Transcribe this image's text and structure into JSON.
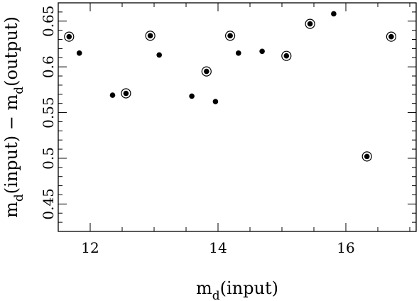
{
  "chart_data": {
    "type": "scatter",
    "title": "",
    "xlabel_base": "m",
    "xlabel_sub": "d",
    "xlabel_rest": "(input)",
    "ylabel_parts": [
      "m",
      "d",
      "(input) − m",
      "d",
      "(output)"
    ],
    "xlim": [
      11.5,
      17.1
    ],
    "ylim": [
      0.42,
      0.67
    ],
    "xticks": [
      12,
      14,
      16
    ],
    "xtick_labels": [
      "12",
      "14",
      "16"
    ],
    "yticks": [
      0.45,
      0.5,
      0.55,
      0.6,
      0.65
    ],
    "ytick_labels": [
      "0.45",
      "0.5",
      "0.55",
      "0.6",
      "0.65"
    ],
    "grid": false,
    "series": [
      {
        "marker": "dot",
        "points": [
          {
            "x": 11.83,
            "y": 0.615
          },
          {
            "x": 12.35,
            "y": 0.569
          },
          {
            "x": 13.08,
            "y": 0.613
          },
          {
            "x": 13.59,
            "y": 0.568
          },
          {
            "x": 13.96,
            "y": 0.562
          },
          {
            "x": 14.32,
            "y": 0.615
          },
          {
            "x": 14.69,
            "y": 0.617
          },
          {
            "x": 15.81,
            "y": 0.658
          }
        ]
      },
      {
        "marker": "circled-dot",
        "points": [
          {
            "x": 11.67,
            "y": 0.633
          },
          {
            "x": 12.56,
            "y": 0.571
          },
          {
            "x": 12.94,
            "y": 0.634
          },
          {
            "x": 13.82,
            "y": 0.595
          },
          {
            "x": 14.19,
            "y": 0.634
          },
          {
            "x": 15.07,
            "y": 0.612
          },
          {
            "x": 15.44,
            "y": 0.647
          },
          {
            "x": 16.33,
            "y": 0.502
          },
          {
            "x": 16.71,
            "y": 0.633
          }
        ]
      }
    ]
  }
}
